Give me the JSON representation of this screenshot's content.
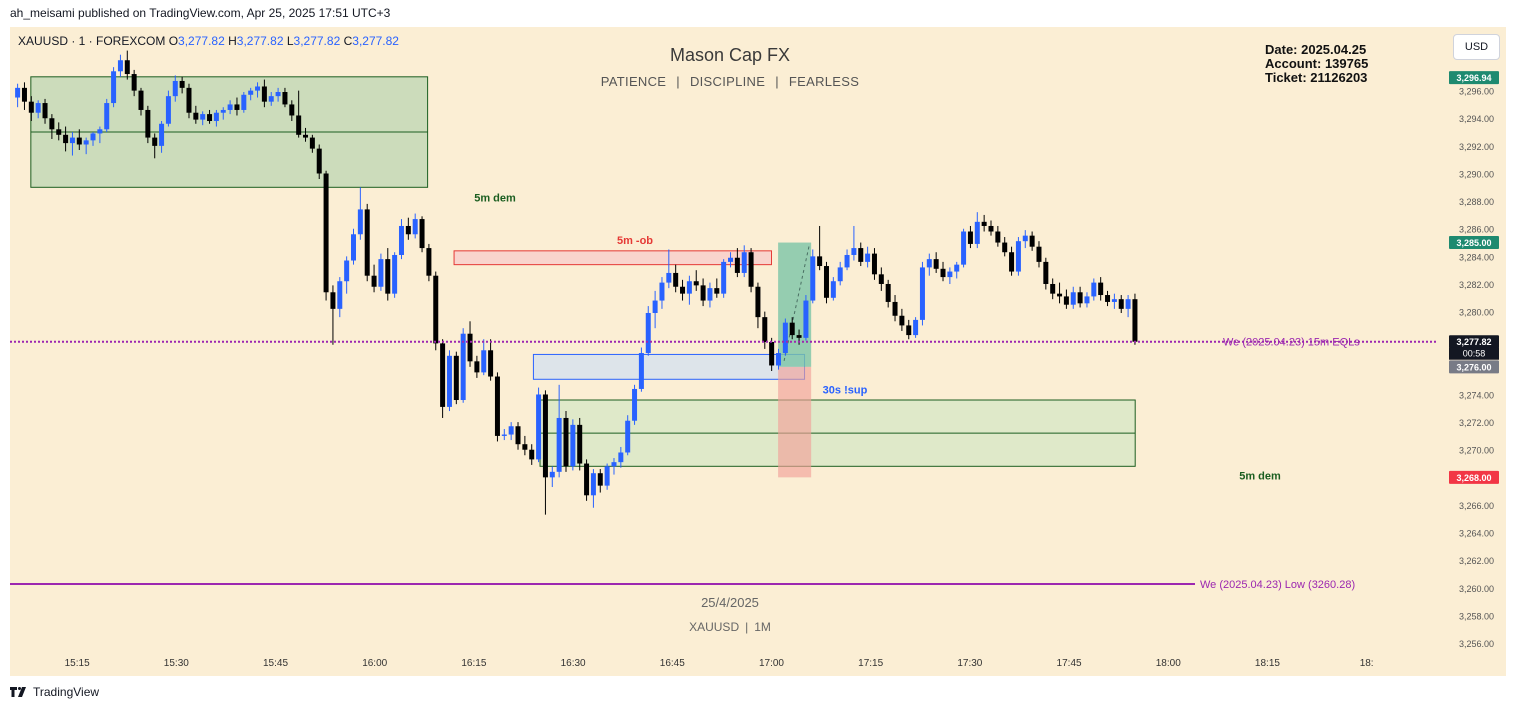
{
  "header": {
    "published_by": "ah_meisami published on TradingView.com, Apr 25, 2025 17:51 UTC+3"
  },
  "symbol": {
    "name": "XAUUSD · 1 · FOREXCOM",
    "o_label": "O",
    "o": "3,277.82",
    "h_label": "H",
    "h": "3,277.82",
    "l_label": "L",
    "l": "3,277.82",
    "c_label": "C",
    "c": "3,277.82"
  },
  "watermark": {
    "title": "Mason Cap FX",
    "words": [
      "PATIENCE",
      "DISCIPLINE",
      "FEARLESS"
    ],
    "sep": "|"
  },
  "info": {
    "date": "Date: 2025.04.25",
    "account": "Account: 139765",
    "ticket": "Ticket: 21126203"
  },
  "currency_button": "USD",
  "footer": {
    "date": "25/4/2025",
    "symbol": "XAUUSD",
    "timeframe": "1M",
    "sep": "|"
  },
  "branding": "TradingView",
  "colors": {
    "up": "#2962ff",
    "down": "#000000",
    "bg": "#fbeed4",
    "purple": "#9c27b0",
    "demand": "#1b5e20",
    "ob": "#e53935"
  },
  "chart_data": {
    "type": "candlestick",
    "x_time_labels": [
      "15:15",
      "15:30",
      "15:45",
      "16:00",
      "16:15",
      "16:30",
      "16:45",
      "17:00",
      "17:15",
      "17:30",
      "17:45",
      "18:00",
      "18:15",
      "18:"
    ],
    "y_ticks": [
      3256,
      3258,
      3260,
      3262,
      3264,
      3266,
      3268,
      3270,
      3272,
      3274,
      3276,
      3278,
      3280,
      3282,
      3284,
      3286,
      3288,
      3290,
      3292,
      3294,
      3296
    ],
    "ylim": [
      3255.5,
      3298.0
    ],
    "price_badges": [
      {
        "label": "3,296.94",
        "value": 3296.94,
        "color": "#1e8a70"
      },
      {
        "label": "3,285.00",
        "value": 3285.0,
        "color": "#1e8a70"
      },
      {
        "label": "3,277.82",
        "value": 3277.82,
        "color": "#131722",
        "countdown": "00:58"
      },
      {
        "label": "3,276.00",
        "value": 3276.0,
        "color": "#787b86"
      },
      {
        "label": "3,268.00",
        "value": 3268.0,
        "color": "#f23645"
      }
    ],
    "zones": [
      {
        "label": "5m dem",
        "top": 3297.0,
        "bottom": 3289.0,
        "mid": 3293.0,
        "start": "15:08",
        "end": "16:08",
        "fill": "#c6d9b8",
        "stroke": "#1b5e20"
      },
      {
        "label": "5m -ob",
        "top": 3284.4,
        "bottom": 3283.4,
        "start": "16:12",
        "end": "17:00",
        "fill": "#f8d0cc",
        "stroke": "#e53935"
      },
      {
        "label": "30s !sup",
        "top": 3276.9,
        "bottom": 3275.1,
        "start": "16:24",
        "end": "17:05",
        "fill": "#d9e2ec",
        "stroke": "#2962ff"
      },
      {
        "label": "5m dem",
        "top": 3273.6,
        "bottom": 3268.8,
        "mid": 3271.2,
        "start": "16:25",
        "end": "17:55",
        "fill": "#dce8c8",
        "stroke": "#1b5e20"
      }
    ],
    "position": {
      "start": "17:01",
      "end": "17:06",
      "entry": 3276.0,
      "target": 3285.0,
      "stop": 3268.0
    },
    "lines": [
      {
        "label": "We (2025.04.23)  15m EQLs",
        "value": 3277.82
      },
      {
        "label": "We (2025.04.23) Low (3260.28)",
        "value": 3260.28
      }
    ],
    "candles": [
      [
        3295.5,
        3296.5,
        3294.8,
        3296.2
      ],
      [
        3296.2,
        3296.6,
        3294.6,
        3295.2
      ],
      [
        3295.2,
        3295.6,
        3293.8,
        3294.4
      ],
      [
        3294.4,
        3295.3,
        3294.0,
        3295.1
      ],
      [
        3295.1,
        3295.4,
        3293.6,
        3294.0
      ],
      [
        3294.0,
        3294.3,
        3292.5,
        3293.2
      ],
      [
        3293.2,
        3293.7,
        3292.4,
        3292.8
      ],
      [
        3292.8,
        3293.4,
        3291.6,
        3292.2
      ],
      [
        3292.2,
        3293.0,
        3291.3,
        3292.6
      ],
      [
        3292.6,
        3293.2,
        3291.7,
        3292.1
      ],
      [
        3292.1,
        3292.6,
        3291.4,
        3292.4
      ],
      [
        3292.4,
        3293.0,
        3292.0,
        3292.9
      ],
      [
        3292.9,
        3293.4,
        3292.2,
        3293.2
      ],
      [
        3293.2,
        3295.4,
        3293.0,
        3295.1
      ],
      [
        3295.1,
        3297.7,
        3294.8,
        3297.4
      ],
      [
        3297.4,
        3298.6,
        3297.0,
        3298.2
      ],
      [
        3298.2,
        3298.9,
        3296.8,
        3297.2
      ],
      [
        3297.2,
        3297.5,
        3295.6,
        3296.0
      ],
      [
        3296.0,
        3296.2,
        3294.2,
        3294.6
      ],
      [
        3294.6,
        3294.9,
        3292.2,
        3292.6
      ],
      [
        3292.6,
        3292.9,
        3291.1,
        3292.0
      ],
      [
        3292.0,
        3293.8,
        3291.5,
        3293.6
      ],
      [
        3293.6,
        3296.0,
        3293.4,
        3295.6
      ],
      [
        3295.6,
        3297.1,
        3295.2,
        3296.7
      ],
      [
        3296.7,
        3297.0,
        3295.8,
        3296.2
      ],
      [
        3296.2,
        3296.5,
        3294.0,
        3294.4
      ],
      [
        3294.4,
        3294.9,
        3293.6,
        3293.9
      ],
      [
        3293.9,
        3294.5,
        3293.5,
        3294.3
      ],
      [
        3294.3,
        3294.6,
        3293.6,
        3293.8
      ],
      [
        3293.8,
        3294.6,
        3293.4,
        3294.4
      ],
      [
        3294.4,
        3294.8,
        3293.9,
        3294.6
      ],
      [
        3294.6,
        3295.3,
        3294.3,
        3295.0
      ],
      [
        3295.0,
        3295.5,
        3294.2,
        3294.6
      ],
      [
        3294.6,
        3295.9,
        3294.4,
        3295.7
      ],
      [
        3295.7,
        3296.2,
        3295.3,
        3296.0
      ],
      [
        3296.0,
        3296.6,
        3295.5,
        3296.3
      ],
      [
        3296.3,
        3296.8,
        3294.8,
        3295.2
      ],
      [
        3295.2,
        3295.9,
        3294.9,
        3295.6
      ],
      [
        3295.6,
        3296.2,
        3295.2,
        3295.9
      ],
      [
        3295.9,
        3296.2,
        3294.8,
        3295.0
      ],
      [
        3295.0,
        3295.3,
        3293.8,
        3294.2
      ],
      [
        3294.2,
        3296.0,
        3292.6,
        3292.8
      ],
      [
        3292.8,
        3293.3,
        3292.3,
        3292.6
      ],
      [
        3292.6,
        3292.8,
        3291.5,
        3291.8
      ],
      [
        3291.8,
        3292.1,
        3289.6,
        3290.0
      ],
      [
        3290.0,
        3290.2,
        3280.8,
        3281.4
      ],
      [
        3281.4,
        3281.9,
        3277.6,
        3280.2
      ],
      [
        3280.2,
        3282.5,
        3279.6,
        3282.2
      ],
      [
        3282.2,
        3284.0,
        3281.3,
        3283.7
      ],
      [
        3283.7,
        3286.0,
        3283.4,
        3285.6
      ],
      [
        3285.6,
        3289.0,
        3285.2,
        3287.4
      ],
      [
        3287.4,
        3287.8,
        3282.2,
        3282.6
      ],
      [
        3282.6,
        3283.4,
        3281.4,
        3281.8
      ],
      [
        3281.8,
        3284.2,
        3281.5,
        3283.8
      ],
      [
        3283.8,
        3284.6,
        3280.8,
        3281.3
      ],
      [
        3281.3,
        3284.3,
        3281.0,
        3284.1
      ],
      [
        3284.1,
        3286.7,
        3283.8,
        3286.2
      ],
      [
        3286.2,
        3286.8,
        3285.2,
        3285.6
      ],
      [
        3285.6,
        3287.1,
        3285.3,
        3286.7
      ],
      [
        3286.7,
        3286.9,
        3284.3,
        3284.6
      ],
      [
        3284.6,
        3284.9,
        3282.2,
        3282.6
      ],
      [
        3282.6,
        3282.9,
        3277.2,
        3277.7
      ],
      [
        3277.7,
        3278.0,
        3272.3,
        3273.1
      ],
      [
        3273.1,
        3277.2,
        3272.8,
        3276.8
      ],
      [
        3276.8,
        3277.1,
        3273.3,
        3273.6
      ],
      [
        3273.6,
        3278.8,
        3273.4,
        3278.4
      ],
      [
        3278.4,
        3279.3,
        3276.0,
        3276.4
      ],
      [
        3276.4,
        3276.8,
        3275.2,
        3275.6
      ],
      [
        3275.6,
        3278.0,
        3275.4,
        3277.2
      ],
      [
        3277.2,
        3278.0,
        3275.0,
        3275.3
      ],
      [
        3275.3,
        3275.6,
        3270.6,
        3271.0
      ],
      [
        3271.0,
        3271.5,
        3270.7,
        3271.1
      ],
      [
        3271.1,
        3272.0,
        3270.7,
        3271.7
      ],
      [
        3271.7,
        3272.0,
        3270.0,
        3270.4
      ],
      [
        3270.4,
        3271.0,
        3269.6,
        3270.0
      ],
      [
        3270.0,
        3270.4,
        3268.9,
        3269.3
      ],
      [
        3269.3,
        3274.5,
        3269.1,
        3274.0
      ],
      [
        3274.0,
        3274.3,
        3265.3,
        3268.0
      ],
      [
        3268.0,
        3268.8,
        3267.3,
        3268.4
      ],
      [
        3268.4,
        3274.7,
        3268.0,
        3272.3
      ],
      [
        3272.3,
        3272.8,
        3268.4,
        3268.8
      ],
      [
        3268.8,
        3272.2,
        3268.5,
        3271.8
      ],
      [
        3271.8,
        3272.3,
        3268.5,
        3269.0
      ],
      [
        3269.0,
        3269.3,
        3266.3,
        3266.7
      ],
      [
        3266.7,
        3268.6,
        3265.8,
        3268.3
      ],
      [
        3268.3,
        3268.6,
        3266.9,
        3267.4
      ],
      [
        3267.4,
        3269.0,
        3267.1,
        3268.8
      ],
      [
        3268.8,
        3269.4,
        3268.2,
        3269.1
      ],
      [
        3269.1,
        3270.2,
        3268.7,
        3269.8
      ],
      [
        3269.8,
        3272.5,
        3269.6,
        3272.1
      ],
      [
        3272.1,
        3274.7,
        3271.8,
        3274.4
      ],
      [
        3274.4,
        3277.4,
        3274.2,
        3277.0
      ],
      [
        3277.0,
        3280.4,
        3276.8,
        3279.9
      ],
      [
        3279.9,
        3281.5,
        3278.8,
        3280.8
      ],
      [
        3280.8,
        3282.5,
        3280.2,
        3282.1
      ],
      [
        3282.1,
        3284.5,
        3281.7,
        3282.8
      ],
      [
        3282.8,
        3283.4,
        3281.4,
        3281.8
      ],
      [
        3281.8,
        3282.3,
        3280.8,
        3281.3
      ],
      [
        3281.3,
        3282.6,
        3280.5,
        3282.2
      ],
      [
        3282.2,
        3283.0,
        3281.5,
        3281.9
      ],
      [
        3281.9,
        3282.4,
        3280.4,
        3280.8
      ],
      [
        3280.8,
        3282.1,
        3280.3,
        3281.7
      ],
      [
        3281.7,
        3282.4,
        3281.0,
        3281.3
      ],
      [
        3281.3,
        3283.8,
        3281.0,
        3283.6
      ],
      [
        3283.6,
        3284.3,
        3283.2,
        3283.9
      ],
      [
        3283.9,
        3284.6,
        3282.5,
        3282.8
      ],
      [
        3282.8,
        3284.8,
        3282.5,
        3284.3
      ],
      [
        3284.3,
        3284.6,
        3281.4,
        3281.8
      ],
      [
        3281.8,
        3282.1,
        3278.8,
        3279.6
      ],
      [
        3279.6,
        3280.0,
        3277.3,
        3277.8
      ],
      [
        3277.8,
        3278.1,
        3275.7,
        3276.1
      ],
      [
        3276.1,
        3277.3,
        3275.8,
        3277.0
      ],
      [
        3277.0,
        3279.5,
        3276.8,
        3279.2
      ],
      [
        3279.2,
        3279.6,
        3278.0,
        3278.3
      ],
      [
        3278.3,
        3278.7,
        3277.6,
        3278.1
      ],
      [
        3278.1,
        3281.2,
        3277.9,
        3280.8
      ],
      [
        3280.8,
        3284.5,
        3280.6,
        3284.0
      ],
      [
        3284.0,
        3286.2,
        3283.0,
        3283.3
      ],
      [
        3283.3,
        3283.6,
        3280.6,
        3281.0
      ],
      [
        3281.0,
        3282.5,
        3280.8,
        3282.2
      ],
      [
        3282.2,
        3283.6,
        3281.9,
        3283.2
      ],
      [
        3283.2,
        3284.5,
        3283.0,
        3284.1
      ],
      [
        3284.1,
        3286.2,
        3283.7,
        3284.6
      ],
      [
        3284.6,
        3285.0,
        3283.3,
        3283.6
      ],
      [
        3283.6,
        3284.7,
        3283.2,
        3284.2
      ],
      [
        3284.2,
        3284.6,
        3282.3,
        3282.7
      ],
      [
        3282.7,
        3283.2,
        3281.5,
        3282.0
      ],
      [
        3282.0,
        3282.3,
        3280.3,
        3280.7
      ],
      [
        3280.7,
        3281.2,
        3279.3,
        3279.7
      ],
      [
        3279.7,
        3280.2,
        3278.6,
        3279.0
      ],
      [
        3279.0,
        3279.4,
        3278.0,
        3278.3
      ],
      [
        3278.3,
        3279.6,
        3278.1,
        3279.4
      ],
      [
        3279.4,
        3283.6,
        3279.0,
        3283.2
      ],
      [
        3283.2,
        3284.2,
        3282.6,
        3283.8
      ],
      [
        3283.8,
        3284.3,
        3282.8,
        3283.1
      ],
      [
        3283.1,
        3283.6,
        3282.2,
        3282.5
      ],
      [
        3282.5,
        3283.2,
        3282.0,
        3282.9
      ],
      [
        3282.9,
        3283.6,
        3282.4,
        3283.4
      ],
      [
        3283.4,
        3286.0,
        3283.2,
        3285.8
      ],
      [
        3285.8,
        3286.2,
        3284.6,
        3284.9
      ],
      [
        3284.9,
        3287.2,
        3284.6,
        3286.5
      ],
      [
        3286.5,
        3287.0,
        3285.8,
        3286.2
      ],
      [
        3286.2,
        3286.6,
        3285.5,
        3285.8
      ],
      [
        3285.8,
        3286.2,
        3284.7,
        3285.0
      ],
      [
        3285.0,
        3285.4,
        3284.0,
        3284.3
      ],
      [
        3284.3,
        3284.7,
        3282.6,
        3282.9
      ],
      [
        3282.9,
        3285.4,
        3282.6,
        3285.1
      ],
      [
        3285.1,
        3285.9,
        3284.6,
        3285.5
      ],
      [
        3285.5,
        3285.8,
        3284.4,
        3284.7
      ],
      [
        3284.7,
        3285.1,
        3283.2,
        3283.6
      ],
      [
        3283.6,
        3283.9,
        3281.6,
        3282.0
      ],
      [
        3282.0,
        3282.4,
        3280.9,
        3281.3
      ],
      [
        3281.3,
        3282.1,
        3280.6,
        3281.1
      ],
      [
        3281.1,
        3281.6,
        3280.2,
        3280.5
      ],
      [
        3280.5,
        3281.8,
        3280.2,
        3281.4
      ],
      [
        3281.4,
        3281.8,
        3280.3,
        3280.6
      ],
      [
        3280.6,
        3281.4,
        3280.3,
        3281.1
      ],
      [
        3281.1,
        3282.4,
        3280.8,
        3282.1
      ],
      [
        3282.1,
        3282.5,
        3280.8,
        3281.2
      ],
      [
        3281.2,
        3281.5,
        3280.4,
        3280.7
      ],
      [
        3280.7,
        3281.3,
        3280.2,
        3280.9
      ],
      [
        3280.9,
        3281.2,
        3279.9,
        3280.2
      ],
      [
        3280.2,
        3281.2,
        3279.6,
        3280.9
      ],
      [
        3280.9,
        3281.3,
        3277.6,
        3277.82
      ]
    ]
  }
}
